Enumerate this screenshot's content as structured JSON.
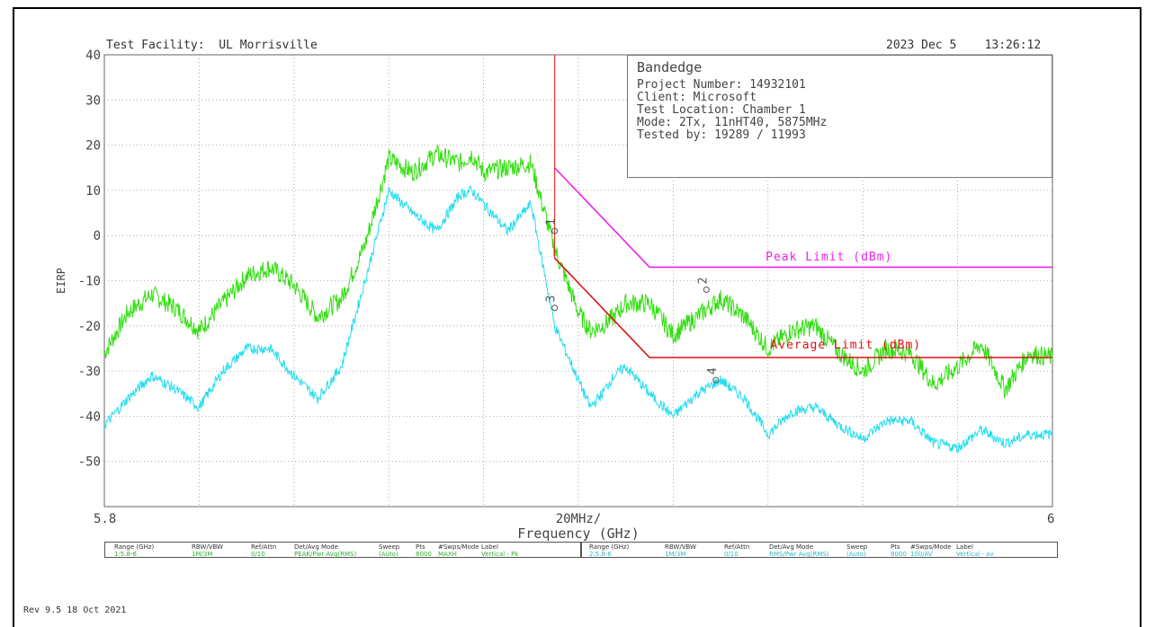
{
  "header": {
    "facility": "Test Facility:  UL Morrisville",
    "datetime": "2023 Dec 5    13:26:12"
  },
  "info": {
    "heading": "Bandedge",
    "lines": [
      "Project Number: 14932101",
      "Client: Microsoft",
      "Test Location: Chamber 1",
      "Mode: 2Tx, 11nHT40, 5875MHz",
      "Tested by: 19289 / 11993"
    ]
  },
  "footer": {
    "revision": "Rev 9.5 18 Oct 2021"
  },
  "colors": {
    "peak_trace": "#33dd11",
    "avg_trace": "#22ddee",
    "peak_limit": "#ee22ee",
    "avg_limit": "#dd1111",
    "grid": "#9a9a9a"
  },
  "chart_data": {
    "type": "line",
    "title": "",
    "xlabel": "Frequency (GHz)",
    "ylabel": "EIRP",
    "x_center_label": "20MHz/",
    "x_tick_labels": [
      "5.8",
      "6"
    ],
    "xlim": [
      5.8,
      6.0
    ],
    "ylim": [
      -60,
      40
    ],
    "y_ticks": [
      40,
      30,
      20,
      10,
      0,
      -10,
      -20,
      -30,
      -40,
      -50
    ],
    "grid": true,
    "series": [
      {
        "kind": "peak-trace",
        "x": [
          5.8,
          5.805,
          5.81,
          5.815,
          5.82,
          5.825,
          5.83,
          5.835,
          5.84,
          5.845,
          5.85,
          5.855,
          5.86,
          5.865,
          5.87,
          5.875,
          5.8775,
          5.88,
          5.885,
          5.89,
          5.895,
          5.9,
          5.9025,
          5.905,
          5.9075,
          5.91,
          5.915,
          5.92,
          5.925,
          5.93,
          5.935,
          5.94,
          5.945,
          5.95,
          5.955,
          5.96,
          5.965,
          5.97,
          5.975,
          5.98,
          5.985,
          5.99,
          5.995,
          6.0
        ],
        "y": [
          -26,
          -17,
          -13,
          -16,
          -21,
          -15,
          -9,
          -7,
          -11,
          -18,
          -14,
          -2,
          17,
          14,
          18,
          16,
          18,
          14,
          15,
          16,
          -3,
          -17,
          -21,
          -20,
          -18,
          -15,
          -15,
          -22,
          -18,
          -14,
          -18,
          -25,
          -21,
          -20,
          -26,
          -30,
          -25,
          -26,
          -33,
          -29,
          -24,
          -34,
          -26,
          -27
        ]
      },
      {
        "kind": "average-trace",
        "x": [
          5.8,
          5.805,
          5.81,
          5.815,
          5.82,
          5.825,
          5.83,
          5.835,
          5.84,
          5.845,
          5.85,
          5.855,
          5.86,
          5.865,
          5.87,
          5.875,
          5.8775,
          5.88,
          5.885,
          5.89,
          5.895,
          5.9,
          5.9025,
          5.905,
          5.9075,
          5.91,
          5.915,
          5.92,
          5.925,
          5.93,
          5.935,
          5.94,
          5.945,
          5.95,
          5.955,
          5.96,
          5.965,
          5.97,
          5.975,
          5.98,
          5.985,
          5.99,
          5.995,
          6.0
        ],
        "y": [
          -42,
          -36,
          -31,
          -34,
          -38,
          -30,
          -25,
          -25,
          -31,
          -36,
          -29,
          -10,
          10,
          5,
          1,
          9,
          10,
          7,
          1,
          7,
          -20,
          -32,
          -38,
          -35,
          -31,
          -29,
          -35,
          -40,
          -35,
          -32,
          -36,
          -44,
          -39,
          -38,
          -42,
          -45,
          -41,
          -41,
          -46,
          -47,
          -43,
          -46,
          -44,
          -44
        ]
      },
      {
        "kind": "peak-limit",
        "x": [
          5.895,
          5.915,
          6.0
        ],
        "y": [
          15,
          -7,
          -7
        ]
      },
      {
        "kind": "average-limit",
        "x": [
          5.895,
          5.915,
          6.0
        ],
        "y": [
          -5,
          -27,
          -27
        ]
      }
    ],
    "band_edge_x": 5.895,
    "annotations": [
      {
        "text": "Peak Limit (dBm)",
        "x": 5.9395,
        "y": -5.5
      },
      {
        "text": "Average Limit (dBm)",
        "x": 5.9405,
        "y": -25
      }
    ],
    "markers": [
      {
        "label": "1",
        "x": 5.895,
        "y": 3
      },
      {
        "label": "2",
        "x": 5.927,
        "y": -10
      },
      {
        "label": "3",
        "x": 5.895,
        "y": -14
      },
      {
        "label": "4",
        "x": 5.929,
        "y": -30
      }
    ]
  },
  "settings_tables": [
    {
      "id": "peak",
      "headers": [
        "Range (GHz)",
        "RBW/VBW",
        "Ref/Attn",
        "Det/Avg Mode",
        "Sweep",
        "Pts",
        "#Swps/Mode",
        "Label"
      ],
      "values": [
        "1:5.8-6",
        "1M/3M",
        "0/10",
        "PEAK/Pwr Avg(RMS)",
        "(Auto)",
        "8000",
        "MAXH",
        "Vertical - Pk"
      ]
    },
    {
      "id": "average",
      "headers": [
        "Range (GHz)",
        "RBW/VBW",
        "Ref/Attn",
        "Det/Avg Mode",
        "Sweep",
        "Pts",
        "#Swps/Mode",
        "Label"
      ],
      "values": [
        "2:5.8-6",
        "1M/3M",
        "0/10",
        "RMS/Pwr Avg(RMS)",
        "(Auto)",
        "8000",
        "100/AV",
        "Vertical - av"
      ]
    }
  ]
}
